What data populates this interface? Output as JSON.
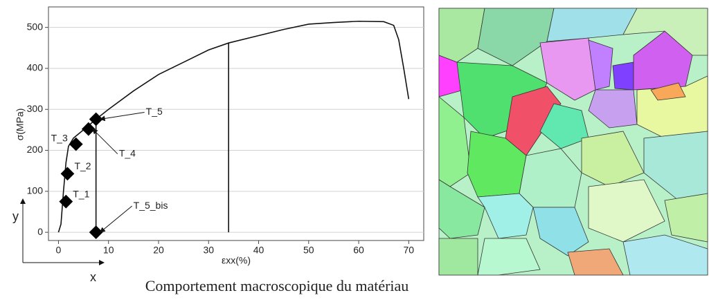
{
  "chart_data": {
    "type": "line",
    "y_label": "σ(MPa)",
    "x_label": "εxx(%)",
    "xlim": [
      -2,
      73
    ],
    "ylim": [
      -20,
      550
    ],
    "xticks": [
      0,
      10,
      20,
      30,
      40,
      50,
      60,
      70
    ],
    "yticks": [
      0,
      100,
      200,
      300,
      400,
      500
    ],
    "grid": true,
    "series": [
      {
        "color": "#111111",
        "x": [
          0,
          0.5,
          1,
          1.5,
          2,
          3,
          5,
          7.5,
          7.5,
          7.5,
          10,
          15,
          20,
          25,
          30,
          34,
          34,
          34,
          40,
          45,
          50,
          55,
          60,
          65,
          67,
          68,
          69,
          70
        ],
        "values": [
          0,
          20,
          100,
          170,
          210,
          230,
          250,
          276,
          0,
          276,
          300,
          345,
          385,
          415,
          445,
          462,
          0,
          462,
          480,
          495,
          508,
          512,
          515,
          514,
          505,
          470,
          400,
          325
        ]
      }
    ],
    "points": {
      "color": "#000000",
      "labels": [
        "T_1",
        "T_2",
        "T_3",
        "T_4",
        "T_5",
        "T_5_bis"
      ],
      "x": [
        1.5,
        1.8,
        3.5,
        6,
        7.5,
        7.5
      ],
      "values": [
        75,
        143,
        215,
        252,
        276,
        0
      ]
    }
  },
  "axis_indicator": {
    "x": "x",
    "y": "y"
  },
  "caption": "Comportement macroscopique du matériau"
}
